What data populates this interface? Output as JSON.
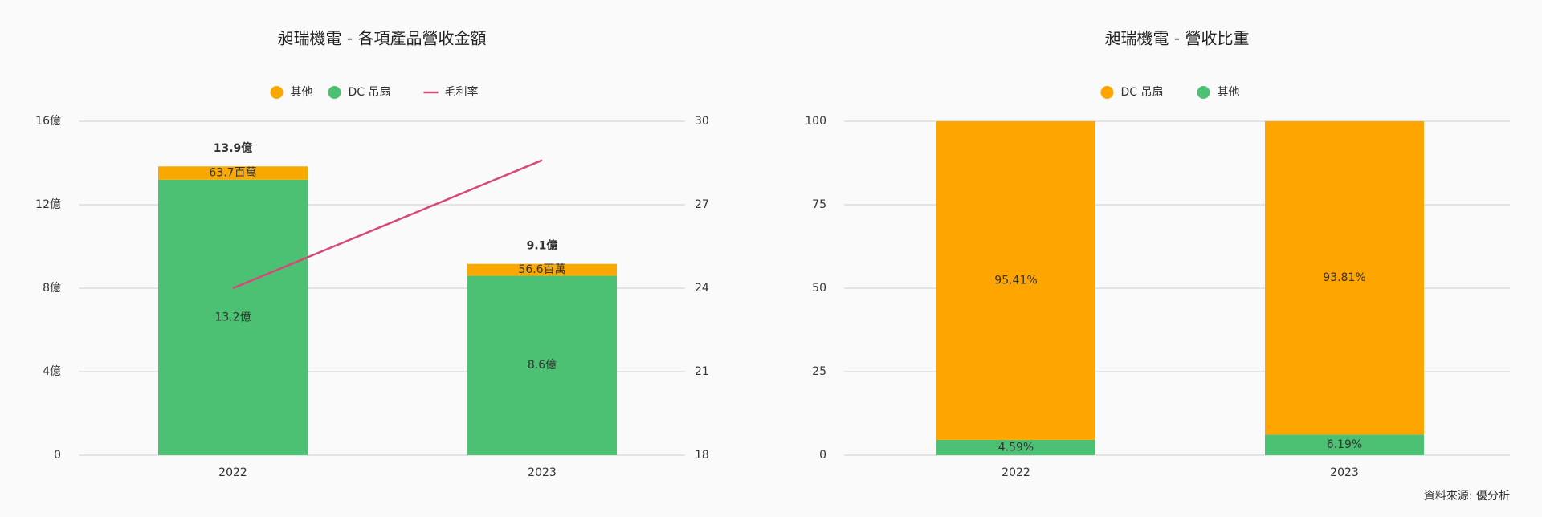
{
  "chart_data": [
    {
      "type": "bar",
      "title": "昶瑞機電 - 各項產品營收金額",
      "categories": [
        "2022",
        "2023"
      ],
      "series": [
        {
          "name": "其他",
          "type": "bar",
          "color": "#f9a800",
          "values": [
            0.637,
            0.566
          ],
          "value_labels": [
            "63.7百萬",
            "56.6百萬"
          ]
        },
        {
          "name": "DC 吊扇",
          "type": "bar",
          "color": "#4cc173",
          "values": [
            13.2,
            8.6
          ],
          "value_labels": [
            "13.2億",
            "8.6億"
          ]
        },
        {
          "name": "毛利率",
          "type": "line",
          "axis": "y2",
          "color": "#d6487a",
          "values": [
            24.0,
            28.6
          ]
        }
      ],
      "total_labels": [
        "13.9億",
        "9.1億"
      ],
      "ylim": [
        0,
        16
      ],
      "yticks": [
        {
          "value": 0,
          "label": "0"
        },
        {
          "value": 4,
          "label": "4億"
        },
        {
          "value": 8,
          "label": "8億"
        },
        {
          "value": 12,
          "label": "12億"
        },
        {
          "value": 16,
          "label": "16億"
        }
      ],
      "y2lim": [
        18,
        30
      ],
      "y2ticks": [
        18,
        21,
        24,
        27,
        30
      ],
      "grid": true
    },
    {
      "type": "bar",
      "title": "昶瑞機電 - 營收比重",
      "categories": [
        "2022",
        "2023"
      ],
      "series": [
        {
          "name": "DC 吊扇",
          "type": "bar",
          "color": "#ffa500",
          "values": [
            95.41,
            93.81
          ],
          "value_labels": [
            "95.41%",
            "93.81%"
          ]
        },
        {
          "name": "其他",
          "type": "bar",
          "color": "#4cc173",
          "values": [
            4.59,
            6.19
          ],
          "value_labels": [
            "4.59%",
            "6.19%"
          ]
        }
      ],
      "ylim": [
        0,
        100
      ],
      "yticks": [
        0,
        25,
        50,
        75,
        100
      ],
      "grid": true
    }
  ],
  "source": "資料來源: 優分析"
}
